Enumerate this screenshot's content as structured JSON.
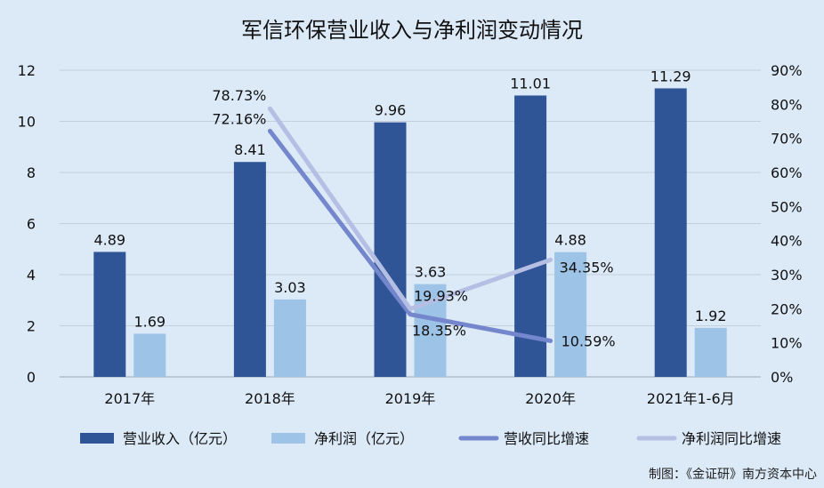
{
  "chart_data": {
    "type": "bar",
    "title": "军信环保营业收入与净利润变动情况",
    "categories": [
      "2017年",
      "2018年",
      "2019年",
      "2020年",
      "2021年1-6月"
    ],
    "series": [
      {
        "name": "营业收入（亿元）",
        "kind": "bar",
        "axis": "left",
        "color": "#2f5597",
        "values": [
          4.89,
          8.41,
          9.96,
          11.01,
          11.29
        ],
        "labels": [
          "4.89",
          "8.41",
          "9.96",
          "11.01",
          "11.29"
        ]
      },
      {
        "name": "净利润（亿元）",
        "kind": "bar",
        "axis": "left",
        "color": "#9dc3e6",
        "values": [
          1.69,
          3.03,
          3.63,
          4.88,
          1.92
        ],
        "labels": [
          "1.69",
          "3.03",
          "3.63",
          "4.88",
          "1.92"
        ]
      },
      {
        "name": "营收同比增速",
        "kind": "line",
        "axis": "right",
        "color": "#7486cc",
        "values": [
          null,
          72.16,
          18.35,
          10.59,
          null
        ],
        "labels": [
          null,
          "72.16%",
          "18.35%",
          "10.59%",
          null
        ]
      },
      {
        "name": "净利润同比增速",
        "kind": "line",
        "axis": "right",
        "color": "#b4bfe3",
        "values": [
          null,
          78.73,
          19.93,
          34.35,
          null
        ],
        "labels": [
          null,
          "78.73%",
          "19.93%",
          "34.35%",
          null
        ]
      }
    ],
    "y_left": {
      "min": 0,
      "max": 12,
      "step": 2,
      "ticks": [
        "0",
        "2",
        "4",
        "6",
        "8",
        "10",
        "12"
      ]
    },
    "y_right": {
      "min": 0,
      "max": 90,
      "step": 10,
      "ticks": [
        "0%",
        "10%",
        "20%",
        "30%",
        "40%",
        "50%",
        "60%",
        "70%",
        "80%",
        "90%"
      ]
    },
    "grid": true,
    "legend_position": "bottom"
  },
  "credit": "制图：《金证研》南方资本中心"
}
